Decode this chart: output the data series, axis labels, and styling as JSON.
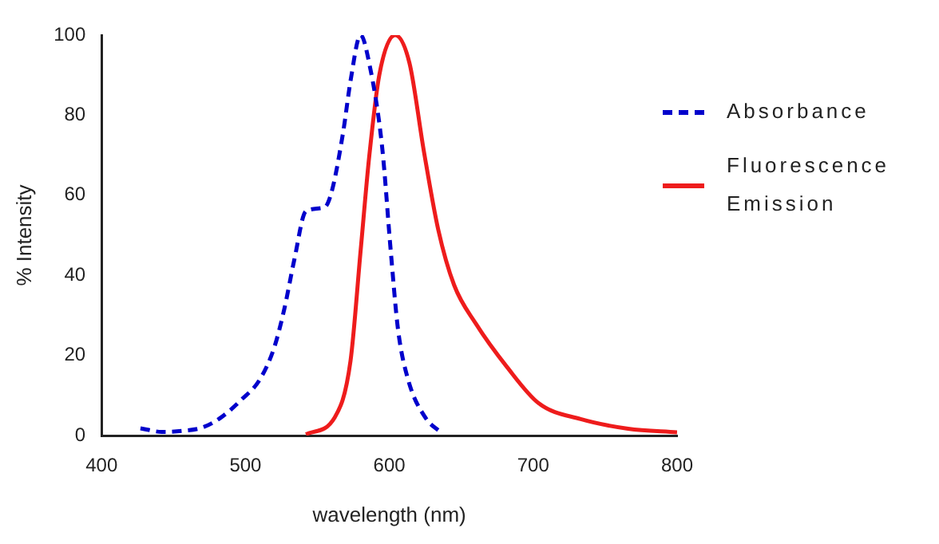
{
  "chart_data": {
    "type": "line",
    "xlabel": "wavelength (nm)",
    "ylabel": "% Intensity",
    "xlim": [
      400,
      800
    ],
    "xticks": [
      400,
      500,
      600,
      700,
      800
    ],
    "ylim": [
      0,
      100
    ],
    "yticks": [
      0,
      20,
      40,
      60,
      80,
      100
    ],
    "grid": false,
    "legend": "right",
    "marker": "none",
    "series": [
      {
        "name": "Absorbance",
        "color": "#0000cc",
        "line_style": "dashed",
        "x": [
          427,
          442,
          457,
          470,
          483,
          497,
          510,
          520,
          527,
          534,
          542,
          555,
          560,
          568,
          573,
          580,
          586,
          595,
          601,
          606,
          613,
          625,
          636
        ],
        "values": [
          1.8,
          0.9,
          1.2,
          2,
          4.5,
          8.9,
          14,
          22,
          31.6,
          44,
          56,
          57,
          61,
          76,
          88.5,
          100,
          93,
          72,
          46,
          26.6,
          14,
          4.5,
          0.7
        ]
      },
      {
        "name": "Fluorescence Emission",
        "color": "#ee1c1c",
        "line_style": "solid",
        "x": [
          542,
          562,
          573,
          580,
          586,
          593,
          604,
          614,
          624,
          634,
          645,
          660,
          682,
          704,
          733,
          766,
          800
        ],
        "values": [
          0.3,
          4.5,
          18.6,
          46,
          69.6,
          90,
          100,
          93,
          71,
          51.4,
          37.6,
          28,
          17,
          8,
          4.1,
          1.7,
          0.8
        ]
      }
    ]
  }
}
